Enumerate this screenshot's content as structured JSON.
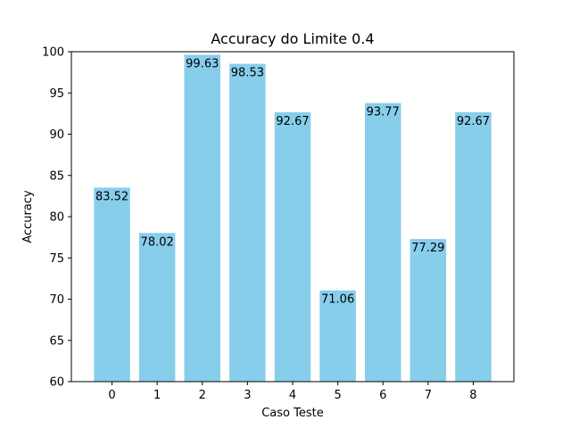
{
  "chart_data": {
    "type": "bar",
    "title": "Accuracy do Limite 0.4",
    "xlabel": "Caso Teste",
    "ylabel": "Accuracy",
    "categories": [
      "0",
      "1",
      "2",
      "3",
      "4",
      "5",
      "6",
      "7",
      "8"
    ],
    "values": [
      83.52,
      78.02,
      99.63,
      98.53,
      92.67,
      71.06,
      93.77,
      77.29,
      92.67
    ],
    "data_labels": [
      "83.52",
      "78.02",
      "99.63",
      "98.53",
      "92.67",
      "71.06",
      "93.77",
      "77.29",
      "92.67"
    ],
    "ylim": [
      60,
      100
    ],
    "yticks": [
      60,
      65,
      70,
      75,
      80,
      85,
      90,
      95,
      100
    ],
    "ytick_labels": [
      "60",
      "65",
      "70",
      "75",
      "80",
      "85",
      "90",
      "95",
      "100"
    ],
    "grid": false,
    "bar_color": "#87ceeb"
  }
}
